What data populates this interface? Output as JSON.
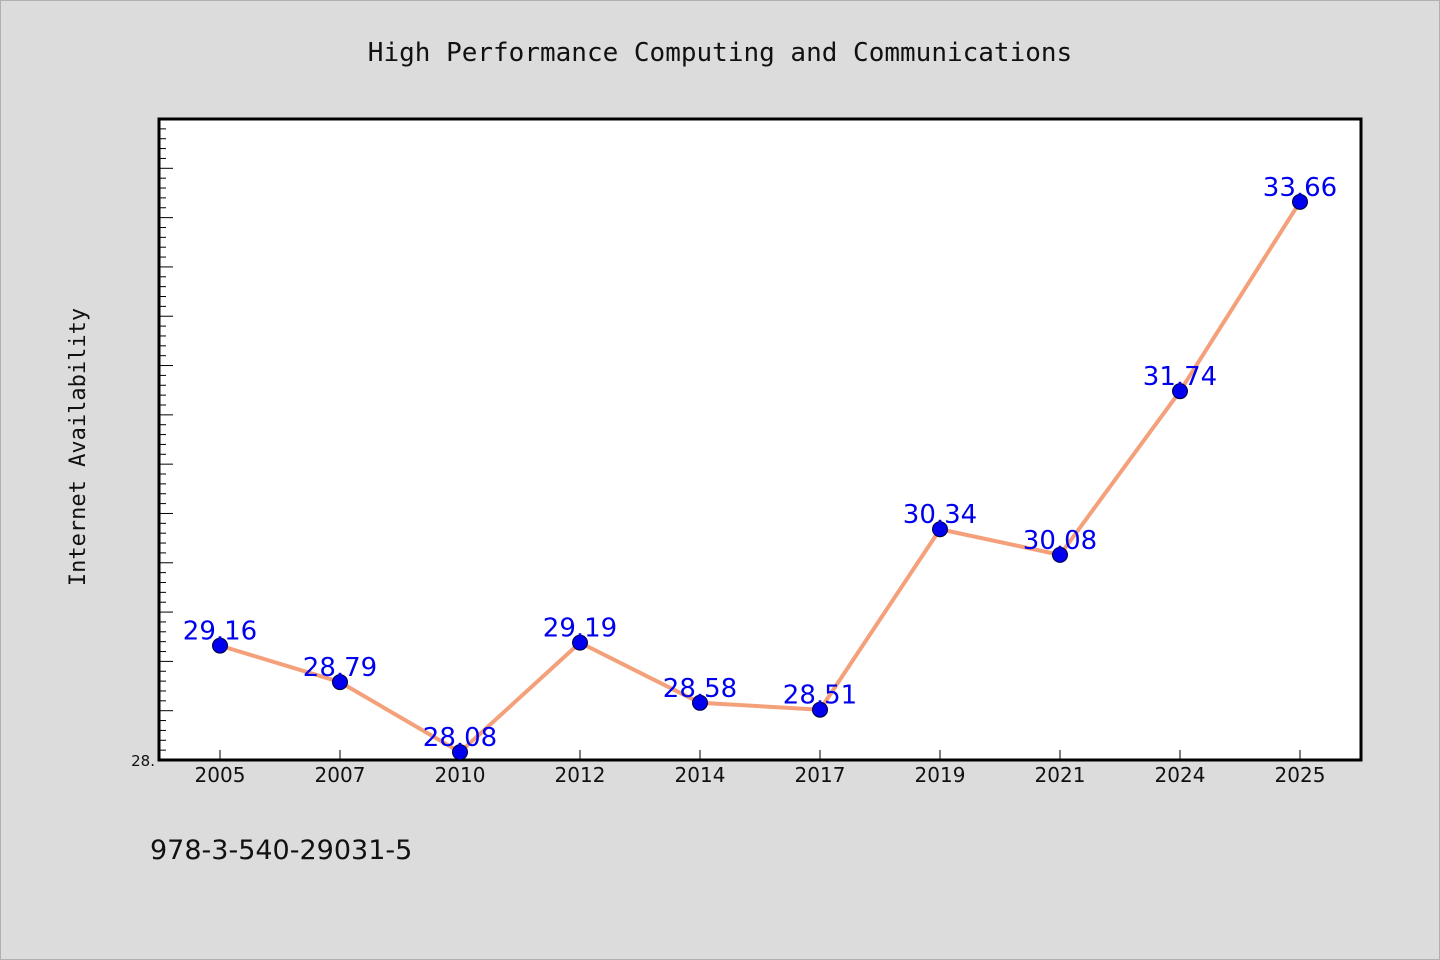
{
  "chart_data": {
    "type": "line",
    "title": "High Performance Computing and Communications",
    "ylabel": "Internet Availability",
    "xlabel": "",
    "categories": [
      "2005",
      "2007",
      "2010",
      "2012",
      "2014",
      "2017",
      "2019",
      "2021",
      "2024",
      "2025"
    ],
    "series": [
      {
        "values": [
          29.16,
          28.79,
          28.08,
          29.19,
          28.58,
          28.51,
          30.34,
          30.08,
          31.74,
          33.66
        ],
        "labels": [
          "29.16",
          "28.79",
          "28.08",
          "29.19",
          "28.58",
          "28.51",
          "30.34",
          "30.08",
          "31.74",
          "33.66"
        ],
        "line_color": "#f4a07a",
        "marker_color": "#0000ee"
      }
    ],
    "ylim": [
      28.0,
      34.5
    ],
    "y_tick_label": "28.",
    "grid": false,
    "legend": "none"
  },
  "footer": {
    "identifier": "978-3-540-29031-5"
  }
}
